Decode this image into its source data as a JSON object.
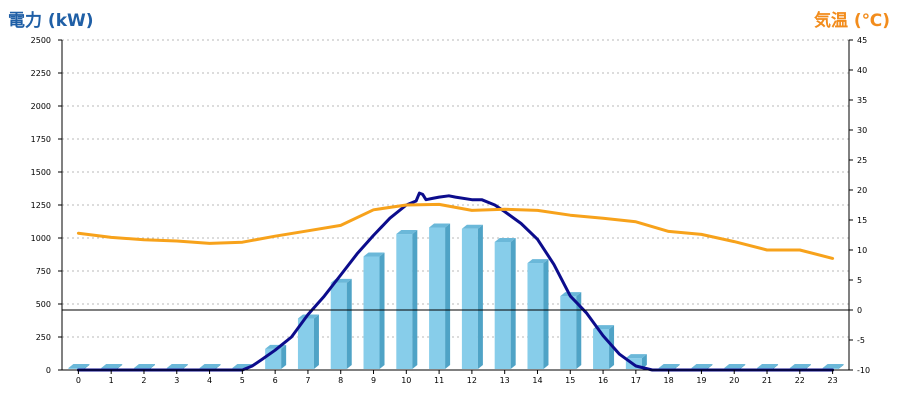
{
  "chart_data": {
    "type": "bar",
    "left_axis": {
      "title": "電力 (kW)",
      "title_color": "#1f5fa6",
      "ylim": [
        0,
        2500
      ],
      "ticks": [
        0,
        250,
        500,
        750,
        1000,
        1250,
        1500,
        1750,
        2000,
        2250,
        2500
      ]
    },
    "right_axis": {
      "title": "気温 (℃)",
      "title_color": "#f28c1c",
      "ylim": [
        -10,
        45
      ],
      "ticks": [
        -10,
        -5,
        0,
        5,
        10,
        15,
        20,
        25,
        30,
        35,
        40,
        45
      ]
    },
    "categories": [
      "0",
      "1",
      "2",
      "3",
      "4",
      "5",
      "6",
      "7",
      "8",
      "9",
      "10",
      "11",
      "12",
      "13",
      "14",
      "15",
      "16",
      "17",
      "18",
      "19",
      "20",
      "21",
      "22",
      "23"
    ],
    "grid": "horizontal-dotted",
    "series": [
      {
        "type": "bar3d",
        "axis": "left",
        "color": "#87cdea",
        "side_color": "#4fa3c6",
        "top_color": "#6bb8d9",
        "values": [
          5,
          5,
          5,
          5,
          5,
          5,
          160,
          390,
          660,
          860,
          1030,
          1080,
          1070,
          970,
          810,
          560,
          310,
          90,
          5,
          5,
          5,
          5,
          5,
          5
        ]
      },
      {
        "type": "line",
        "axis": "left",
        "color": "#0c0c8c",
        "x": [
          0,
          1,
          2,
          3,
          4,
          5,
          5.3,
          5.6,
          6,
          6.5,
          7,
          7.5,
          8,
          8.5,
          9,
          9.5,
          10,
          10.3,
          10.4,
          10.5,
          10.6,
          10.8,
          11,
          11.3,
          11.5,
          12,
          12.3,
          12.7,
          13,
          13.5,
          14,
          14.5,
          15,
          15.5,
          16,
          16.5,
          17,
          17.5,
          18,
          19,
          20,
          21,
          22,
          23
        ],
        "y": [
          0,
          0,
          0,
          0,
          0,
          0,
          30,
          80,
          150,
          250,
          420,
          560,
          720,
          880,
          1020,
          1150,
          1250,
          1280,
          1340,
          1330,
          1290,
          1300,
          1310,
          1320,
          1310,
          1290,
          1290,
          1250,
          1200,
          1110,
          990,
          800,
          560,
          430,
          260,
          120,
          30,
          0,
          0,
          0,
          0,
          0,
          0,
          0
        ]
      },
      {
        "type": "line",
        "axis": "right",
        "color": "#f7a21b",
        "values": [
          12.8,
          12.1,
          11.7,
          11.5,
          11.1,
          11.3,
          12.3,
          13.2,
          14.1,
          16.7,
          17.5,
          17.6,
          16.6,
          16.8,
          16.6,
          15.8,
          15.3,
          14.7,
          13.1,
          12.6,
          11.4,
          10,
          10,
          8.6
        ]
      }
    ]
  }
}
